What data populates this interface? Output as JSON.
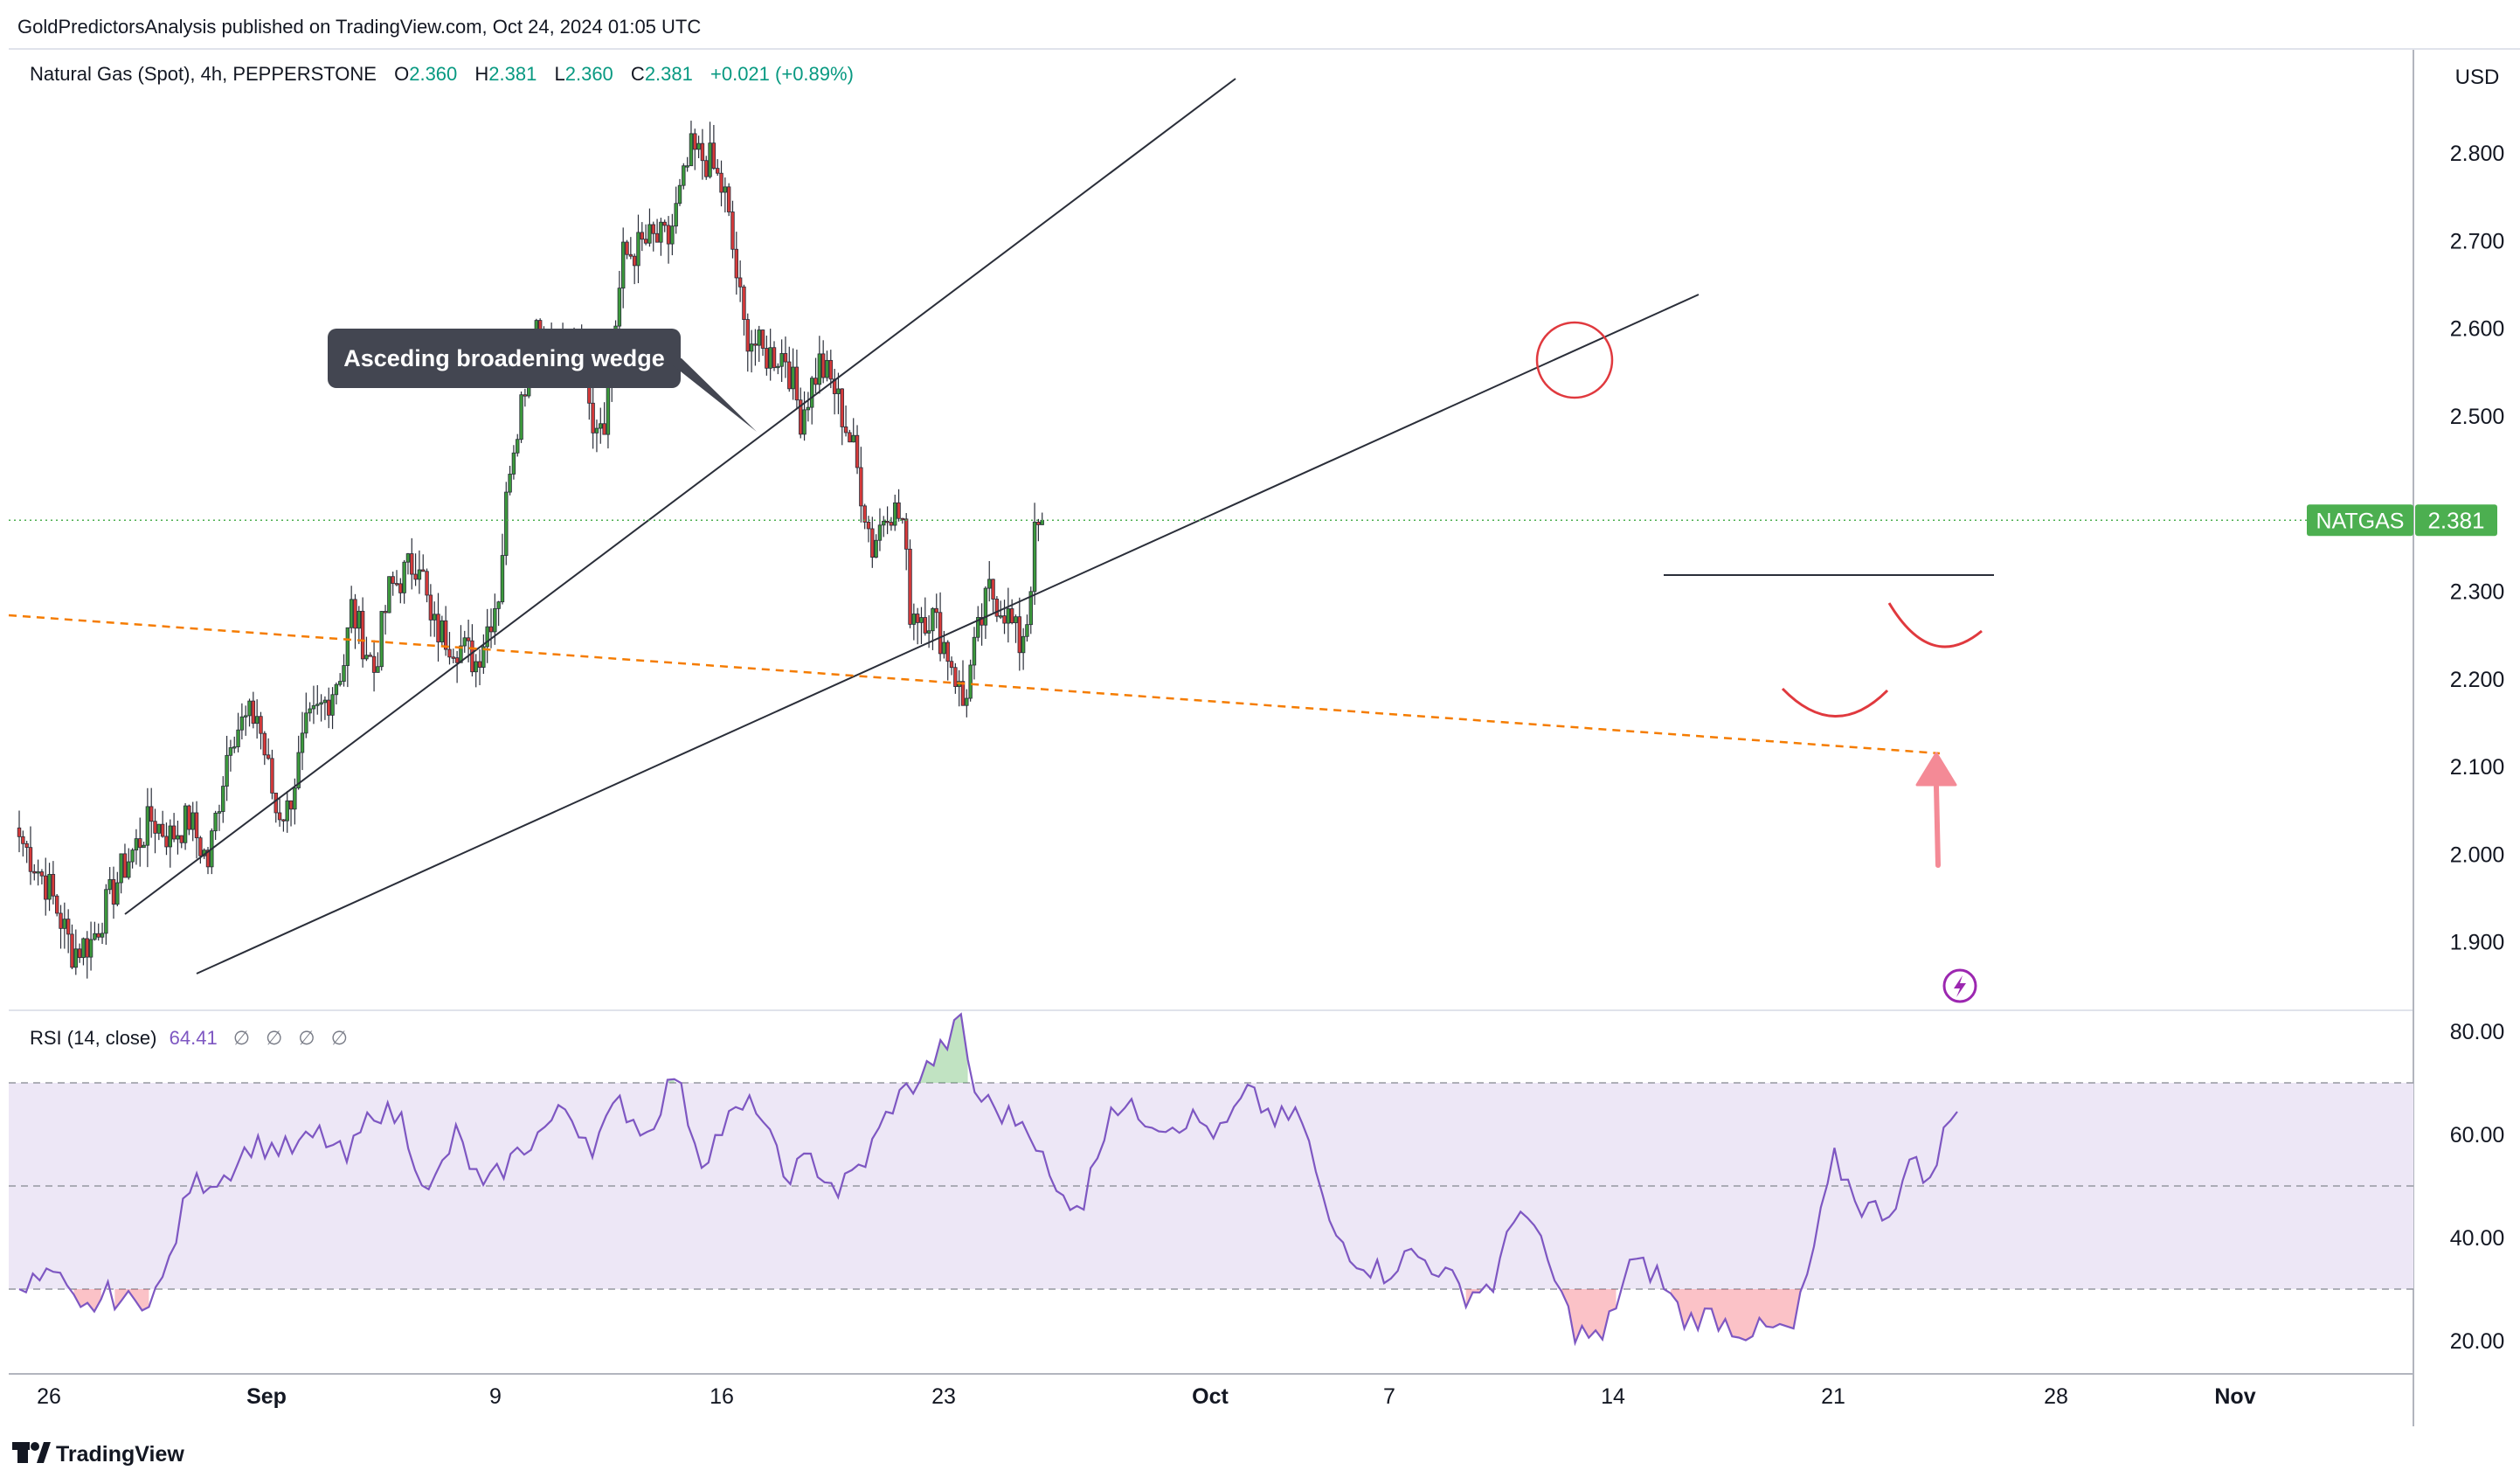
{
  "header": {
    "publisher": "GoldPredictorsAnalysis published on TradingView.com, Oct 24, 2024 01:05 UTC"
  },
  "legend": {
    "symbol": "Natural Gas (Spot), 4h, PEPPERSTONE",
    "open_label": "O",
    "open": "2.360",
    "high_label": "H",
    "high": "2.381",
    "low_label": "L",
    "low": "2.360",
    "close_label": "C",
    "close": "2.381",
    "change": "+0.021 (+0.89%)"
  },
  "currency": "USD",
  "price_tag": {
    "symbol": "NATGAS",
    "value": "2.381"
  },
  "annotation": {
    "callout": "Asceding broadening wedge"
  },
  "rsi_legend": {
    "label": "RSI (14, close)",
    "value": "64.41",
    "na": [
      "∅",
      "∅",
      "∅",
      "∅"
    ]
  },
  "footer": {
    "brand": "TradingView"
  },
  "colors": {
    "up": "#26a69a",
    "up_candle": "#3c9a3c",
    "down_candle": "#d63a3a",
    "rsi_line": "#7e57c2",
    "rsi_band": "#ede7f6",
    "price_line": "#4caf50",
    "tag": "#4caf50",
    "orange_line": "#f57c00",
    "annot": "#e0393e"
  },
  "chart_data": [
    {
      "type": "candlestick",
      "title": "Natural Gas (Spot), 4h, PEPPERSTONE",
      "currency": "USD",
      "ylim": [
        1.83,
        2.9
      ],
      "y_ticks": [
        "2.800",
        "2.700",
        "2.600",
        "2.500",
        "2.300",
        "2.200",
        "2.100",
        "2.000",
        "1.900"
      ],
      "x_ticks": [
        "26",
        "Sep",
        "9",
        "16",
        "23",
        "Oct",
        "7",
        "14",
        "21",
        "28",
        "Nov"
      ],
      "last_price": 2.381,
      "path_points": [
        {
          "i": 0,
          "p": 2.02
        },
        {
          "i": 8,
          "p": 1.96
        },
        {
          "i": 14,
          "p": 1.89
        },
        {
          "i": 19,
          "p": 1.9
        },
        {
          "i": 27,
          "p": 1.98
        },
        {
          "i": 35,
          "p": 2.04
        },
        {
          "i": 40,
          "p": 2.02
        },
        {
          "i": 45,
          "p": 2.04
        },
        {
          "i": 50,
          "p": 1.99
        },
        {
          "i": 56,
          "p": 2.14
        },
        {
          "i": 63,
          "p": 2.16
        },
        {
          "i": 68,
          "p": 2.05
        },
        {
          "i": 71,
          "p": 2.05
        },
        {
          "i": 76,
          "p": 2.14
        },
        {
          "i": 82,
          "p": 2.18
        },
        {
          "i": 86,
          "p": 2.22
        },
        {
          "i": 88,
          "p": 2.28
        },
        {
          "i": 94,
          "p": 2.21
        },
        {
          "i": 98,
          "p": 2.3
        },
        {
          "i": 106,
          "p": 2.34
        },
        {
          "i": 109,
          "p": 2.26
        },
        {
          "i": 116,
          "p": 2.24
        },
        {
          "i": 121,
          "p": 2.22
        },
        {
          "i": 127,
          "p": 2.3
        },
        {
          "i": 130,
          "p": 2.45
        },
        {
          "i": 137,
          "p": 2.61
        },
        {
          "i": 142,
          "p": 2.55
        },
        {
          "i": 149,
          "p": 2.6
        },
        {
          "i": 152,
          "p": 2.5
        },
        {
          "i": 155,
          "p": 2.5
        },
        {
          "i": 160,
          "p": 2.68
        },
        {
          "i": 167,
          "p": 2.7
        },
        {
          "i": 172,
          "p": 2.7
        },
        {
          "i": 178,
          "p": 2.8
        },
        {
          "i": 183,
          "p": 2.79
        },
        {
          "i": 187,
          "p": 2.75
        },
        {
          "i": 192,
          "p": 2.6
        },
        {
          "i": 197,
          "p": 2.57
        },
        {
          "i": 203,
          "p": 2.57
        },
        {
          "i": 207,
          "p": 2.5
        },
        {
          "i": 212,
          "p": 2.56
        },
        {
          "i": 216,
          "p": 2.53
        },
        {
          "i": 221,
          "p": 2.46
        },
        {
          "i": 226,
          "p": 2.35
        },
        {
          "i": 230,
          "p": 2.4
        },
        {
          "i": 234,
          "p": 2.38
        },
        {
          "i": 236,
          "p": 2.28
        },
        {
          "i": 242,
          "p": 2.27
        },
        {
          "i": 247,
          "p": 2.22
        },
        {
          "i": 250,
          "p": 2.17
        },
        {
          "i": 254,
          "p": 2.25
        },
        {
          "i": 257,
          "p": 2.3
        },
        {
          "i": 261,
          "p": 2.28
        },
        {
          "i": 265,
          "p": 2.24
        },
        {
          "i": 267,
          "p": 2.27
        },
        {
          "i": 269,
          "p": 2.36
        },
        {
          "i": 271,
          "p": 2.381
        }
      ]
    },
    {
      "type": "line",
      "title": "RSI (14, close)",
      "last_value": 64.41,
      "ylim": [
        15,
        84
      ],
      "y_ticks": [
        80,
        60,
        40,
        20
      ],
      "bands": {
        "upper": 70,
        "middle": 50,
        "lower": 30
      },
      "path_points": [
        {
          "i": 0,
          "p": 30
        },
        {
          "i": 5,
          "p": 33
        },
        {
          "i": 9,
          "p": 25
        },
        {
          "i": 13,
          "p": 29
        },
        {
          "i": 17,
          "p": 27
        },
        {
          "i": 21,
          "p": 31
        },
        {
          "i": 25,
          "p": 50
        },
        {
          "i": 30,
          "p": 52
        },
        {
          "i": 34,
          "p": 58
        },
        {
          "i": 40,
          "p": 57
        },
        {
          "i": 44,
          "p": 60
        },
        {
          "i": 48,
          "p": 55
        },
        {
          "i": 52,
          "p": 65
        },
        {
          "i": 56,
          "p": 63
        },
        {
          "i": 60,
          "p": 48
        },
        {
          "i": 64,
          "p": 60
        },
        {
          "i": 68,
          "p": 49
        },
        {
          "i": 72,
          "p": 55
        },
        {
          "i": 76,
          "p": 60
        },
        {
          "i": 80,
          "p": 65
        },
        {
          "i": 84,
          "p": 58
        },
        {
          "i": 88,
          "p": 66
        },
        {
          "i": 92,
          "p": 60
        },
        {
          "i": 96,
          "p": 72
        },
        {
          "i": 100,
          "p": 55
        },
        {
          "i": 104,
          "p": 63
        },
        {
          "i": 108,
          "p": 66
        },
        {
          "i": 112,
          "p": 52
        },
        {
          "i": 116,
          "p": 55
        },
        {
          "i": 120,
          "p": 49
        },
        {
          "i": 124,
          "p": 55
        },
        {
          "i": 128,
          "p": 66
        },
        {
          "i": 132,
          "p": 71
        },
        {
          "i": 136,
          "p": 78
        },
        {
          "i": 138,
          "p": 82
        },
        {
          "i": 140,
          "p": 68
        },
        {
          "i": 144,
          "p": 64
        },
        {
          "i": 148,
          "p": 62
        },
        {
          "i": 152,
          "p": 48
        },
        {
          "i": 156,
          "p": 47
        },
        {
          "i": 160,
          "p": 66
        },
        {
          "i": 164,
          "p": 64
        },
        {
          "i": 168,
          "p": 62
        },
        {
          "i": 172,
          "p": 63
        },
        {
          "i": 176,
          "p": 60
        },
        {
          "i": 180,
          "p": 68
        },
        {
          "i": 184,
          "p": 63
        },
        {
          "i": 188,
          "p": 63
        },
        {
          "i": 192,
          "p": 42
        },
        {
          "i": 196,
          "p": 36
        },
        {
          "i": 200,
          "p": 33
        },
        {
          "i": 204,
          "p": 37
        },
        {
          "i": 208,
          "p": 34
        },
        {
          "i": 212,
          "p": 29
        },
        {
          "i": 216,
          "p": 31
        },
        {
          "i": 220,
          "p": 47
        },
        {
          "i": 224,
          "p": 35
        },
        {
          "i": 228,
          "p": 22
        },
        {
          "i": 232,
          "p": 20
        },
        {
          "i": 236,
          "p": 35
        },
        {
          "i": 240,
          "p": 33
        },
        {
          "i": 244,
          "p": 24
        },
        {
          "i": 248,
          "p": 25
        },
        {
          "i": 252,
          "p": 22
        },
        {
          "i": 256,
          "p": 22
        },
        {
          "i": 260,
          "p": 22
        },
        {
          "i": 263,
          "p": 38
        },
        {
          "i": 266,
          "p": 55
        },
        {
          "i": 270,
          "p": 46
        },
        {
          "i": 274,
          "p": 45
        },
        {
          "i": 278,
          "p": 56
        },
        {
          "i": 280,
          "p": 50
        },
        {
          "i": 282,
          "p": 60
        },
        {
          "i": 284,
          "p": 64.41
        }
      ]
    }
  ]
}
